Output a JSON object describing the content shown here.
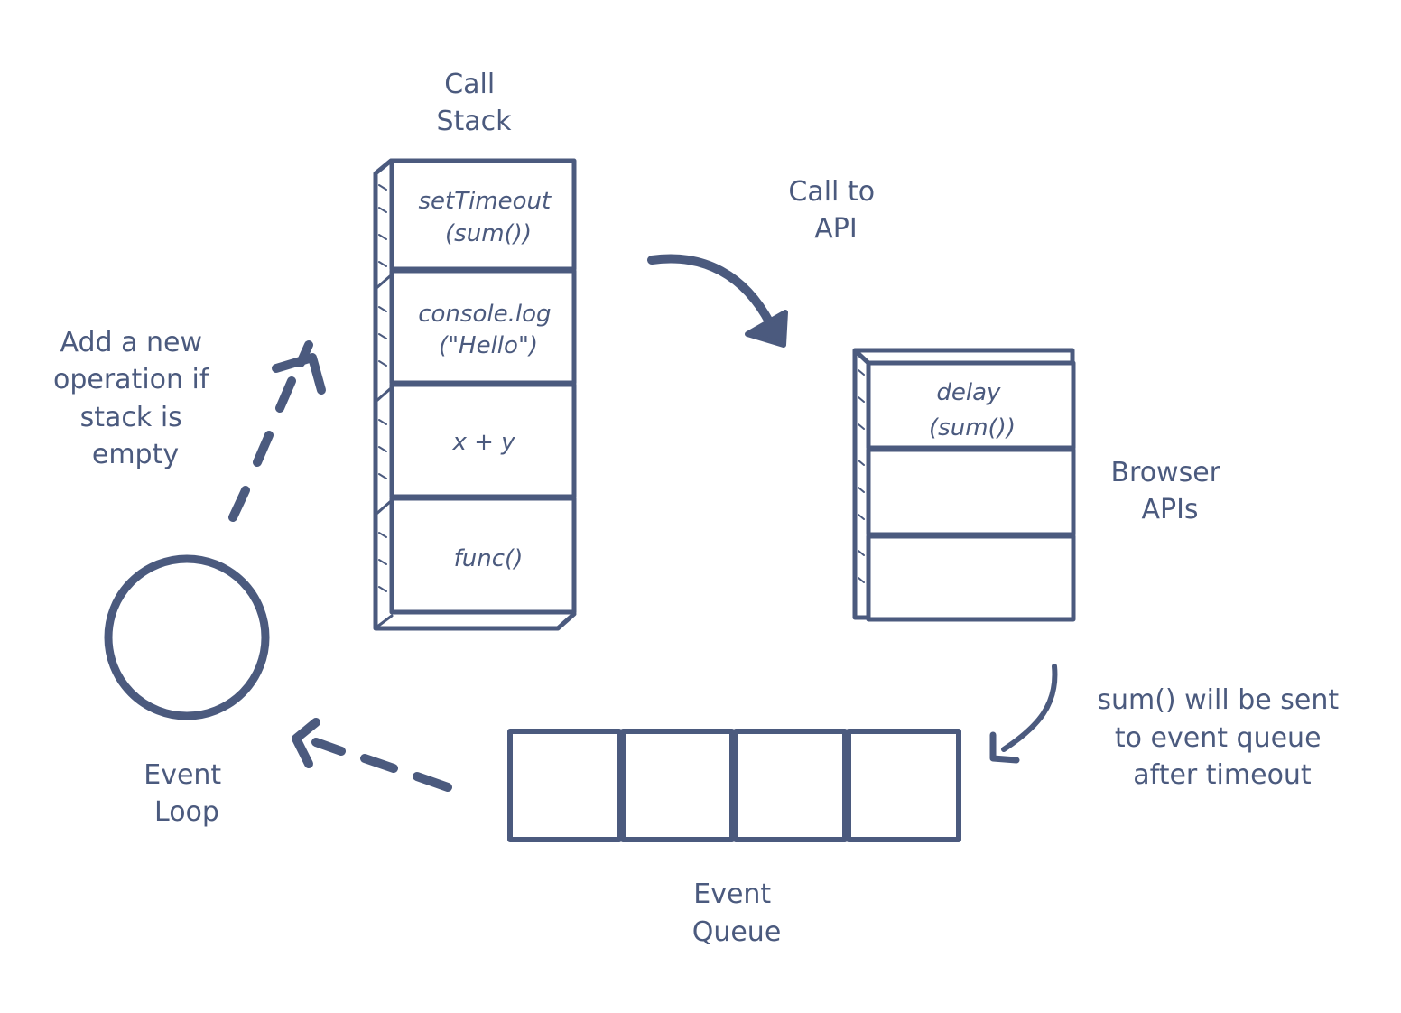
{
  "labels": {
    "call_stack": [
      "Call",
      "Stack"
    ],
    "call_to_api": [
      "Call to",
      "API"
    ],
    "browser_apis": [
      "Browser",
      "APIs"
    ],
    "sent_note": [
      "sum() will be sent",
      "to event queue",
      "after timeout"
    ],
    "event_queue": [
      "Event",
      "Queue"
    ],
    "event_loop": [
      "Event",
      "Loop"
    ],
    "add_note": [
      "Add a new",
      "operation if",
      "stack is",
      "empty"
    ]
  },
  "call_stack": [
    {
      "lines": [
        "setTimeout",
        "(sum())"
      ],
      "color": "#8ac3e0"
    },
    {
      "lines": [
        "console.log",
        "(\"Hello\")"
      ],
      "color": "#b2abd3"
    },
    {
      "lines": [
        "x + y"
      ],
      "color": "#f5c6b8"
    },
    {
      "lines": [
        "func()"
      ],
      "color": "#a6d4cf"
    }
  ],
  "browser_apis": [
    {
      "lines": [
        "delay",
        "(sum())"
      ],
      "color": "#8ac3e0"
    },
    {
      "lines": [],
      "color": "#f8d3b9"
    },
    {
      "lines": [],
      "color": "#a6d4cf"
    }
  ],
  "event_queue": [
    {
      "color": "#ffffff"
    },
    {
      "color": "#b2abd3"
    },
    {
      "color": "#f08c84"
    },
    {
      "color": "#8ac3e0"
    }
  ],
  "event_loop_color": "#b2abd3",
  "ink_color": "#4b5a7e"
}
